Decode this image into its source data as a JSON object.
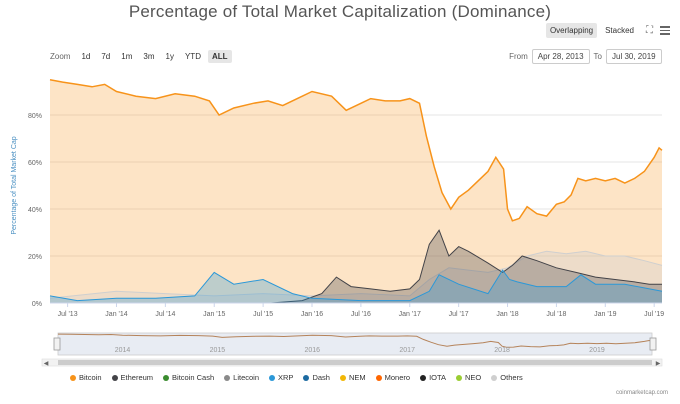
{
  "chart_data": {
    "type": "area",
    "title": "Percentage of Total Market Capitalization (Dominance)",
    "ylabel": "Percentage of Total Market Cap",
    "xlabel": "",
    "ylim": [
      0,
      100
    ],
    "y_ticks": [
      "0%",
      "20%",
      "40%",
      "60%",
      "80%"
    ],
    "x_ticks": [
      "Jul '13",
      "Jan '14",
      "Jul '14",
      "Jan '15",
      "Jul '15",
      "Jan '16",
      "Jul '16",
      "Jan '17",
      "Jul '17",
      "Jan '18",
      "Jul '18",
      "Jan '19",
      "Jul '19"
    ],
    "navigator_labels": [
      "2014",
      "2015",
      "2016",
      "2017",
      "2018",
      "2019"
    ],
    "x_range": [
      2013.32,
      2019.58
    ],
    "series": [
      {
        "name": "Bitcoin",
        "color": "#f7931a",
        "x": [
          2013.32,
          2013.45,
          2013.6,
          2013.75,
          2013.88,
          2014.0,
          2014.2,
          2014.4,
          2014.6,
          2014.8,
          2014.95,
          2015.05,
          2015.2,
          2015.4,
          2015.55,
          2015.7,
          2015.85,
          2016.0,
          2016.2,
          2016.35,
          2016.5,
          2016.6,
          2016.75,
          2016.9,
          2017.0,
          2017.1,
          2017.17,
          2017.25,
          2017.33,
          2017.42,
          2017.5,
          2017.6,
          2017.7,
          2017.8,
          2017.88,
          2017.96,
          2018.0,
          2018.05,
          2018.12,
          2018.2,
          2018.3,
          2018.4,
          2018.5,
          2018.58,
          2018.65,
          2018.72,
          2018.8,
          2018.9,
          2019.0,
          2019.1,
          2019.2,
          2019.3,
          2019.4,
          2019.5,
          2019.55,
          2019.58
        ],
        "values": [
          95,
          94,
          93,
          92,
          93,
          90,
          88,
          87,
          89,
          88,
          86,
          80,
          83,
          85,
          86,
          84,
          87,
          90,
          88,
          82,
          85,
          87,
          86,
          86,
          87,
          85,
          71,
          58,
          47,
          40,
          45,
          48,
          52,
          56,
          62,
          57,
          40,
          35,
          36,
          41,
          38,
          37,
          42,
          43,
          46,
          53,
          52,
          53,
          52,
          53,
          51,
          53,
          56,
          62,
          66,
          65
        ]
      },
      {
        "name": "Ethereum",
        "color": "#434348",
        "x": [
          2015.58,
          2015.9,
          2016.1,
          2016.25,
          2016.4,
          2016.6,
          2016.8,
          2017.0,
          2017.1,
          2017.2,
          2017.3,
          2017.4,
          2017.5,
          2017.6,
          2017.8,
          2017.95,
          2018.05,
          2018.15,
          2018.3,
          2018.5,
          2018.7,
          2018.9,
          2019.1,
          2019.3,
          2019.45,
          2019.58
        ],
        "values": [
          0,
          1,
          4,
          11,
          7,
          6,
          5,
          6,
          10,
          25,
          31,
          20,
          24,
          22,
          17,
          13,
          16,
          20,
          18,
          15,
          13,
          11,
          10,
          9,
          8,
          8
        ]
      },
      {
        "name": "XRP",
        "color": "#2b98d8",
        "x": [
          2013.32,
          2013.6,
          2014.0,
          2014.4,
          2014.8,
          2015.0,
          2015.2,
          2015.5,
          2015.8,
          2016.0,
          2016.5,
          2017.0,
          2017.2,
          2017.3,
          2017.5,
          2017.8,
          2017.95,
          2018.02,
          2018.1,
          2018.3,
          2018.6,
          2018.75,
          2018.9,
          2019.2,
          2019.58
        ],
        "values": [
          3,
          1,
          2,
          2,
          3,
          13,
          8,
          10,
          4,
          2,
          1,
          1,
          5,
          12,
          8,
          4,
          14,
          10,
          9,
          7,
          7,
          12,
          8,
          8,
          5
        ]
      },
      {
        "name": "Others",
        "color": "#cfcfcf",
        "x": [
          2013.32,
          2014.0,
          2014.5,
          2015.0,
          2015.5,
          2016.0,
          2016.5,
          2017.0,
          2017.2,
          2017.4,
          2017.6,
          2017.8,
          2018.0,
          2018.2,
          2018.4,
          2018.6,
          2018.8,
          2019.0,
          2019.2,
          2019.4,
          2019.58
        ],
        "values": [
          2,
          5,
          4,
          3,
          4,
          3,
          4,
          3,
          10,
          15,
          14,
          13,
          15,
          20,
          22,
          21,
          22,
          20,
          20,
          18,
          16
        ]
      }
    ],
    "legend": [
      {
        "name": "Bitcoin",
        "color": "#f7931a"
      },
      {
        "name": "Ethereum",
        "color": "#434348"
      },
      {
        "name": "Bitcoin Cash",
        "color": "#3a8c2f"
      },
      {
        "name": "Litecoin",
        "color": "#8a8a8a"
      },
      {
        "name": "XRP",
        "color": "#2b98d8"
      },
      {
        "name": "Dash",
        "color": "#1c6aa1"
      },
      {
        "name": "NEM",
        "color": "#f2b705"
      },
      {
        "name": "Monero",
        "color": "#ff6600"
      },
      {
        "name": "IOTA",
        "color": "#222222"
      },
      {
        "name": "NEO",
        "color": "#9acd32"
      },
      {
        "name": "Others",
        "color": "#cfcfcf"
      }
    ]
  },
  "toolbar": {
    "overlapping_label": "Overlapping",
    "stacked_label": "Stacked"
  },
  "zoom": {
    "label": "Zoom",
    "buttons": [
      "1d",
      "7d",
      "1m",
      "3m",
      "1y",
      "YTD",
      "ALL"
    ],
    "active": "ALL"
  },
  "range": {
    "from_label": "From",
    "from_value": "Apr 28, 2013",
    "to_label": "To",
    "to_value": "Jul 30, 2019"
  },
  "credit": "coinmarketcap.com"
}
